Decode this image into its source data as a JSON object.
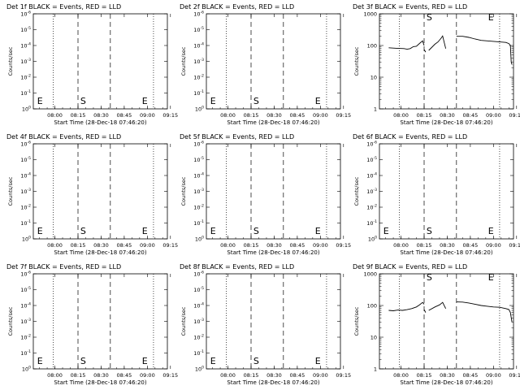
{
  "chart_data": [
    {
      "id": "det1",
      "type": "line",
      "title": "Det 1f BLACK = Events, RED = LLD",
      "ylabel": "Counts/sec",
      "xlabel": "Start Time (28-Dec-18 07:46:20)",
      "x_ticks": [
        "08:00",
        "08:15",
        "08:30",
        "08:45",
        "09:00",
        "09:15"
      ],
      "x_range_minutes_from_08_00": [
        -14,
        73
      ],
      "y_scale": "log",
      "y_ticks": [
        {
          "base": "10",
          "exp": "0"
        },
        {
          "base": "10",
          "exp": "-1"
        },
        {
          "base": "10",
          "exp": "-2"
        },
        {
          "base": "10",
          "exp": "-3"
        },
        {
          "base": "10",
          "exp": "-4"
        },
        {
          "base": "10",
          "exp": "-5"
        },
        {
          "base": "10",
          "exp": "-6"
        }
      ],
      "y_exp_range": [
        -6,
        0
      ],
      "dotted_lines_min": [
        -1,
        64
      ],
      "dashed_lines_min": [
        15,
        36
      ],
      "markers": [
        {
          "label": "E",
          "x_min": -12
        },
        {
          "label": "S",
          "x_min": 16
        },
        {
          "label": "E",
          "x_min": 56
        }
      ],
      "series": []
    },
    {
      "id": "det2",
      "type": "line",
      "title": "Det 2f BLACK = Events, RED = LLD",
      "ylabel": "Counts/sec",
      "xlabel": "Start Time (28-Dec-18 07:46:20)",
      "x_ticks": [
        "08:00",
        "08:15",
        "08:30",
        "08:45",
        "09:00",
        "09:15"
      ],
      "x_range_minutes_from_08_00": [
        -14,
        73
      ],
      "y_scale": "log",
      "y_ticks": [
        {
          "base": "10",
          "exp": "0"
        },
        {
          "base": "10",
          "exp": "-1"
        },
        {
          "base": "10",
          "exp": "-2"
        },
        {
          "base": "10",
          "exp": "-3"
        },
        {
          "base": "10",
          "exp": "-4"
        },
        {
          "base": "10",
          "exp": "-5"
        },
        {
          "base": "10",
          "exp": "-6"
        }
      ],
      "y_exp_range": [
        -6,
        0
      ],
      "dotted_lines_min": [
        -1,
        64
      ],
      "dashed_lines_min": [
        15,
        36
      ],
      "markers": [
        {
          "label": "E",
          "x_min": -12
        },
        {
          "label": "S",
          "x_min": 16
        },
        {
          "label": "E",
          "x_min": 56
        }
      ],
      "series": []
    },
    {
      "id": "det3",
      "type": "line",
      "title": "Det 3f BLACK = Events, RED = LLD",
      "ylabel": "Counts/sec",
      "xlabel": "Start Time (28-Dec-18 07:46:20)",
      "x_ticks": [
        "08:00",
        "08:15",
        "08:30",
        "08:45",
        "09:00",
        "09:15"
      ],
      "x_range_minutes_from_08_00": [
        -14,
        73
      ],
      "y_scale": "log",
      "y_ticks": [
        {
          "base": "1",
          "exp": ""
        },
        {
          "base": "10",
          "exp": ""
        },
        {
          "base": "100",
          "exp": ""
        },
        {
          "base": "1000",
          "exp": ""
        }
      ],
      "y_exp_range": [
        0,
        3
      ],
      "dotted_lines_min": [
        -1,
        64
      ],
      "dashed_lines_min": [
        15,
        36
      ],
      "markers": [
        {
          "label": "S",
          "x_min": 16,
          "top": true
        },
        {
          "label": "E",
          "x_min": 56,
          "top": true
        }
      ],
      "series": [
        {
          "name": "Events",
          "color": "#000000",
          "segments": [
            [
              [
                -8,
                85
              ],
              [
                -3,
                82
              ],
              [
                2,
                80
              ],
              [
                4,
                76
              ],
              [
                6,
                80
              ],
              [
                8,
                92
              ],
              [
                10,
                95
              ],
              [
                12,
                116
              ],
              [
                14,
                140
              ],
              [
                15,
                100
              ]
            ],
            [
              [
                15,
                75
              ],
              [
                16,
                62
              ]
            ],
            [
              [
                18,
                70
              ],
              [
                22,
                110
              ],
              [
                24,
                130
              ],
              [
                26,
                170
              ],
              [
                27,
                200
              ],
              [
                29,
                80
              ]
            ],
            [
              [
                36,
                195
              ],
              [
                40,
                195
              ],
              [
                44,
                180
              ],
              [
                48,
                160
              ],
              [
                52,
                145
              ],
              [
                56,
                140
              ],
              [
                60,
                135
              ],
              [
                64,
                130
              ],
              [
                68,
                125
              ],
              [
                70,
                115
              ],
              [
                71,
                100
              ],
              [
                71.5,
                30
              ],
              [
                72,
                25
              ]
            ]
          ]
        }
      ]
    },
    {
      "id": "det4",
      "type": "line",
      "title": "Det 4f BLACK = Events, RED = LLD",
      "ylabel": "Counts/sec",
      "xlabel": "Start Time (28-Dec-18 07:46:20)",
      "x_ticks": [
        "08:00",
        "08:15",
        "08:30",
        "08:45",
        "09:00",
        "09:15"
      ],
      "x_range_minutes_from_08_00": [
        -14,
        73
      ],
      "y_scale": "log",
      "y_ticks": [
        {
          "base": "10",
          "exp": "0"
        },
        {
          "base": "10",
          "exp": "-1"
        },
        {
          "base": "10",
          "exp": "-2"
        },
        {
          "base": "10",
          "exp": "-3"
        },
        {
          "base": "10",
          "exp": "-4"
        },
        {
          "base": "10",
          "exp": "-5"
        },
        {
          "base": "10",
          "exp": "-6"
        }
      ],
      "y_exp_range": [
        -6,
        0
      ],
      "dotted_lines_min": [
        -1,
        64
      ],
      "dashed_lines_min": [
        15,
        36
      ],
      "markers": [
        {
          "label": "E",
          "x_min": -12
        },
        {
          "label": "S",
          "x_min": 16
        },
        {
          "label": "E",
          "x_min": 56
        }
      ],
      "series": []
    },
    {
      "id": "det5",
      "type": "line",
      "title": "Det 5f BLACK = Events, RED = LLD",
      "ylabel": "Counts/sec",
      "xlabel": "Start Time (28-Dec-18 07:46:20)",
      "x_ticks": [
        "08:00",
        "08:15",
        "08:30",
        "08:45",
        "09:00",
        "09:15"
      ],
      "x_range_minutes_from_08_00": [
        -14,
        73
      ],
      "y_scale": "log",
      "y_ticks": [
        {
          "base": "10",
          "exp": "0"
        },
        {
          "base": "10",
          "exp": "-1"
        },
        {
          "base": "10",
          "exp": "-2"
        },
        {
          "base": "10",
          "exp": "-3"
        },
        {
          "base": "10",
          "exp": "-4"
        },
        {
          "base": "10",
          "exp": "-5"
        },
        {
          "base": "10",
          "exp": "-6"
        }
      ],
      "y_exp_range": [
        -6,
        0
      ],
      "dotted_lines_min": [
        -1,
        64
      ],
      "dashed_lines_min": [
        15,
        36
      ],
      "markers": [
        {
          "label": "E",
          "x_min": -12
        },
        {
          "label": "S",
          "x_min": 16
        },
        {
          "label": "E",
          "x_min": 56
        }
      ],
      "series": []
    },
    {
      "id": "det6",
      "type": "line",
      "title": "Det 6f BLACK = Events, RED = LLD",
      "ylabel": "Counts/sec",
      "xlabel": "Start Time (28-Dec-18 07:46:20)",
      "x_ticks": [
        "08:00",
        "08:15",
        "08:30",
        "08:45",
        "09:00",
        "09:15"
      ],
      "x_range_minutes_from_08_00": [
        -14,
        73
      ],
      "y_scale": "log",
      "y_ticks": [
        {
          "base": "10",
          "exp": "0"
        },
        {
          "base": "10",
          "exp": "-1"
        },
        {
          "base": "10",
          "exp": "-2"
        },
        {
          "base": "10",
          "exp": "-3"
        },
        {
          "base": "10",
          "exp": "-4"
        },
        {
          "base": "10",
          "exp": "-5"
        },
        {
          "base": "10",
          "exp": "-6"
        }
      ],
      "y_exp_range": [
        -6,
        0
      ],
      "dotted_lines_min": [
        -1,
        64
      ],
      "dashed_lines_min": [
        15,
        36
      ],
      "markers": [
        {
          "label": "E",
          "x_min": -12
        },
        {
          "label": "S",
          "x_min": 16
        },
        {
          "label": "E",
          "x_min": 56
        }
      ],
      "series": []
    },
    {
      "id": "det7",
      "type": "line",
      "title": "Det 7f BLACK = Events, RED = LLD",
      "ylabel": "Counts/sec",
      "xlabel": "Start Time (28-Dec-18 07:46:20)",
      "x_ticks": [
        "08:00",
        "08:15",
        "08:30",
        "08:45",
        "09:00",
        "09:15"
      ],
      "x_range_minutes_from_08_00": [
        -14,
        73
      ],
      "y_scale": "log",
      "y_ticks": [
        {
          "base": "10",
          "exp": "0"
        },
        {
          "base": "10",
          "exp": "-1"
        },
        {
          "base": "10",
          "exp": "-2"
        },
        {
          "base": "10",
          "exp": "-3"
        },
        {
          "base": "10",
          "exp": "-4"
        },
        {
          "base": "10",
          "exp": "-5"
        },
        {
          "base": "10",
          "exp": "-6"
        }
      ],
      "y_exp_range": [
        -6,
        0
      ],
      "dotted_lines_min": [
        -1,
        64
      ],
      "dashed_lines_min": [
        15,
        36
      ],
      "markers": [
        {
          "label": "E",
          "x_min": -12
        },
        {
          "label": "S",
          "x_min": 16
        },
        {
          "label": "E",
          "x_min": 56
        }
      ],
      "series": []
    },
    {
      "id": "det8",
      "type": "line",
      "title": "Det 8f BLACK = Events, RED = LLD",
      "ylabel": "Counts/sec",
      "xlabel": "Start Time (28-Dec-18 07:46:20)",
      "x_ticks": [
        "08:00",
        "08:15",
        "08:30",
        "08:45",
        "09:00",
        "09:15"
      ],
      "x_range_minutes_from_08_00": [
        -14,
        73
      ],
      "y_scale": "log",
      "y_ticks": [
        {
          "base": "10",
          "exp": "0"
        },
        {
          "base": "10",
          "exp": "-1"
        },
        {
          "base": "10",
          "exp": "-2"
        },
        {
          "base": "10",
          "exp": "-3"
        },
        {
          "base": "10",
          "exp": "-4"
        },
        {
          "base": "10",
          "exp": "-5"
        },
        {
          "base": "10",
          "exp": "-6"
        }
      ],
      "y_exp_range": [
        -6,
        0
      ],
      "dotted_lines_min": [
        -1,
        64
      ],
      "dashed_lines_min": [
        15,
        36
      ],
      "markers": [
        {
          "label": "E",
          "x_min": -12
        },
        {
          "label": "S",
          "x_min": 16
        },
        {
          "label": "E",
          "x_min": 56
        }
      ],
      "series": []
    },
    {
      "id": "det9",
      "type": "line",
      "title": "Det 9f BLACK = Events, RED = LLD",
      "ylabel": "Counts/sec",
      "xlabel": "Start Time (28-Dec-18 07:46:20)",
      "x_ticks": [
        "08:00",
        "08:15",
        "08:30",
        "08:45",
        "09:00",
        "09:15"
      ],
      "x_range_minutes_from_08_00": [
        -14,
        73
      ],
      "y_scale": "log",
      "y_ticks": [
        {
          "base": "1",
          "exp": ""
        },
        {
          "base": "10",
          "exp": ""
        },
        {
          "base": "100",
          "exp": ""
        },
        {
          "base": "1000",
          "exp": ""
        }
      ],
      "y_exp_range": [
        0,
        3
      ],
      "dotted_lines_min": [
        -1,
        64
      ],
      "dashed_lines_min": [
        15,
        36
      ],
      "markers": [
        {
          "label": "S",
          "x_min": 16,
          "top": true
        },
        {
          "label": "E",
          "x_min": 56,
          "top": true
        }
      ],
      "series": [
        {
          "name": "Events",
          "color": "#000000",
          "segments": [
            [
              [
                -8,
                70
              ],
              [
                -5,
                68
              ],
              [
                -2,
                72
              ],
              [
                1,
                70
              ],
              [
                4,
                74
              ],
              [
                7,
                80
              ],
              [
                10,
                90
              ],
              [
                12,
                105
              ],
              [
                14,
                125
              ],
              [
                15,
                110
              ]
            ],
            [
              [
                15,
                75
              ],
              [
                16,
                60
              ]
            ],
            [
              [
                18,
                70
              ],
              [
                22,
                90
              ],
              [
                25,
                105
              ],
              [
                27,
                125
              ],
              [
                29,
                80
              ]
            ],
            [
              [
                36,
                130
              ],
              [
                40,
                128
              ],
              [
                44,
                120
              ],
              [
                48,
                110
              ],
              [
                52,
                100
              ],
              [
                56,
                95
              ],
              [
                60,
                90
              ],
              [
                64,
                88
              ],
              [
                68,
                80
              ],
              [
                70,
                75
              ],
              [
                71,
                60
              ],
              [
                72,
                30
              ]
            ]
          ]
        }
      ]
    }
  ]
}
